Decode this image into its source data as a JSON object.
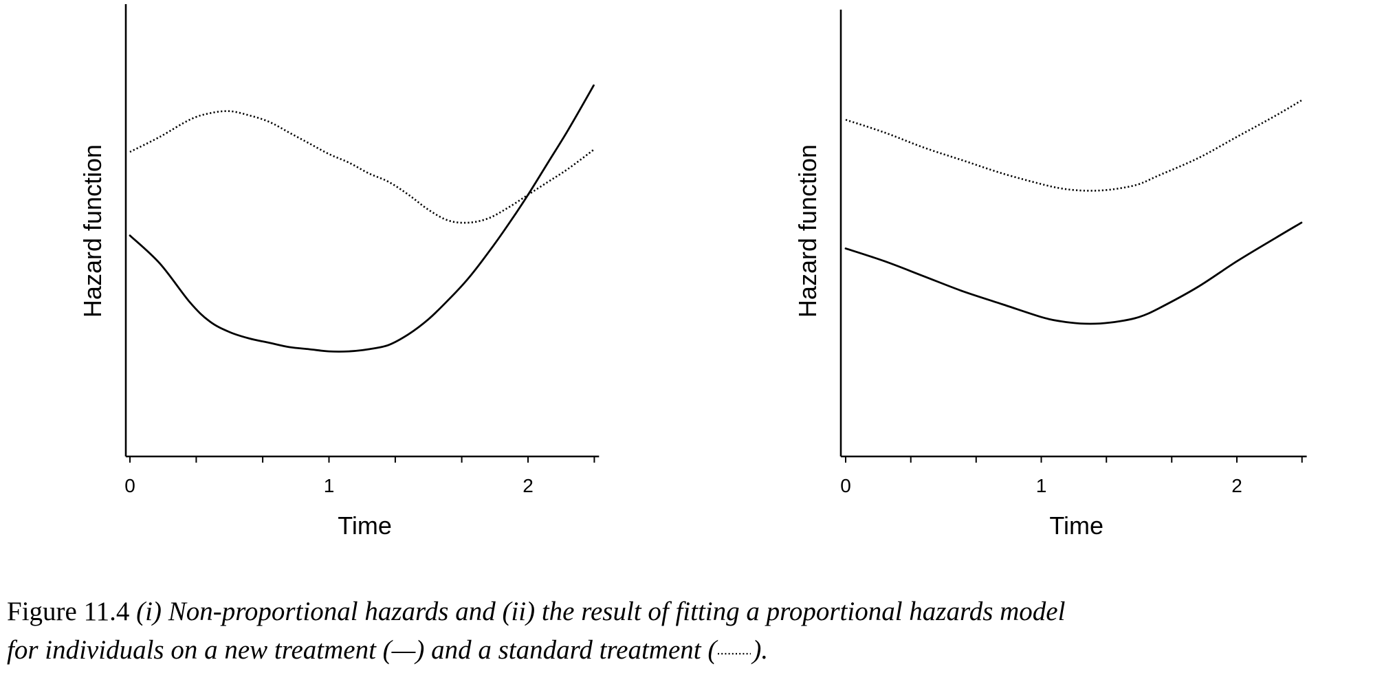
{
  "chart_data": [
    {
      "type": "line",
      "xlabel": "Time",
      "ylabel": "Hazard function",
      "xlim": [
        0,
        2.35
      ],
      "ylim": [
        0,
        1.0
      ],
      "x_ticks": [
        0,
        1,
        2
      ],
      "minor_ticks": [
        0,
        0.333,
        0.667,
        1,
        1.333,
        1.667,
        2,
        2.333
      ],
      "y_tick_labels": false,
      "series": [
        {
          "line_style": "solid",
          "x": [
            0,
            0.15,
            0.3,
            0.4,
            0.5,
            0.6,
            0.7,
            0.8,
            0.9,
            1.0,
            1.1,
            1.2,
            1.3,
            1.4,
            1.5,
            1.6,
            1.7,
            1.8,
            1.9,
            2.0,
            2.1,
            2.2,
            2.33
          ],
          "y": [
            0.515,
            0.45,
            0.36,
            0.315,
            0.29,
            0.275,
            0.265,
            0.255,
            0.25,
            0.245,
            0.245,
            0.25,
            0.26,
            0.285,
            0.32,
            0.365,
            0.415,
            0.475,
            0.54,
            0.61,
            0.685,
            0.76,
            0.865
          ]
        },
        {
          "line_style": "dotted",
          "x": [
            0,
            0.15,
            0.3,
            0.4,
            0.5,
            0.6,
            0.7,
            0.8,
            0.9,
            1.0,
            1.1,
            1.2,
            1.3,
            1.4,
            1.5,
            1.6,
            1.7,
            1.8,
            1.9,
            2.0,
            2.1,
            2.2,
            2.33
          ],
          "y": [
            0.71,
            0.745,
            0.785,
            0.8,
            0.805,
            0.795,
            0.78,
            0.755,
            0.73,
            0.705,
            0.685,
            0.66,
            0.64,
            0.61,
            0.575,
            0.55,
            0.545,
            0.555,
            0.58,
            0.61,
            0.64,
            0.67,
            0.715
          ]
        }
      ]
    },
    {
      "type": "line",
      "xlabel": "Time",
      "ylabel": "Hazard function",
      "xlim": [
        0,
        2.35
      ],
      "ylim": [
        0,
        1.0
      ],
      "x_ticks": [
        0,
        1,
        2
      ],
      "minor_ticks": [
        0,
        0.333,
        0.667,
        1,
        1.333,
        1.667,
        2,
        2.333
      ],
      "y_tick_labels": false,
      "series": [
        {
          "line_style": "solid",
          "x": [
            0,
            0.2,
            0.4,
            0.6,
            0.8,
            1.0,
            1.1,
            1.2,
            1.3,
            1.4,
            1.5,
            1.6,
            1.8,
            2.0,
            2.2,
            2.33
          ],
          "y": [
            0.485,
            0.455,
            0.42,
            0.385,
            0.355,
            0.325,
            0.315,
            0.31,
            0.31,
            0.315,
            0.325,
            0.345,
            0.395,
            0.455,
            0.51,
            0.545
          ]
        },
        {
          "line_style": "dotted",
          "x": [
            0,
            0.2,
            0.4,
            0.6,
            0.8,
            1.0,
            1.1,
            1.2,
            1.3,
            1.4,
            1.5,
            1.6,
            1.8,
            2.0,
            2.2,
            2.33
          ],
          "y": [
            0.785,
            0.755,
            0.72,
            0.69,
            0.66,
            0.635,
            0.625,
            0.62,
            0.62,
            0.625,
            0.635,
            0.655,
            0.695,
            0.745,
            0.795,
            0.83
          ]
        }
      ]
    }
  ],
  "caption": {
    "label": "Figure 11.4",
    "line1": "(i) Non-proportional hazards and (ii) the result of fitting a proportional hazards model",
    "line2": "for individuals on a new treatment (—) and a standard treatment (",
    "line2_end": ")."
  }
}
